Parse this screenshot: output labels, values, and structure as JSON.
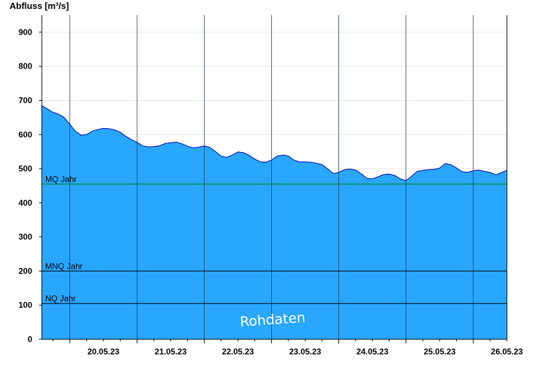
{
  "chart_data": {
    "type": "area",
    "ylabel": "Abfluss [m³/s]",
    "ylim": [
      0,
      950
    ],
    "yticks": [
      0,
      100,
      200,
      300,
      400,
      500,
      600,
      700,
      800,
      900
    ],
    "xlim": [
      "2023-05-19T14:00",
      "2023-05-26T12:00"
    ],
    "day_boundaries": [
      "2023-05-20T00:00",
      "2023-05-21T00:00",
      "2023-05-22T00:00",
      "2023-05-23T00:00",
      "2023-05-24T00:00",
      "2023-05-25T00:00",
      "2023-05-26T00:00"
    ],
    "xtick_labels": [
      {
        "date": "2023-05-20T12:00",
        "label": "20.05.23"
      },
      {
        "date": "2023-05-21T12:00",
        "label": "21.05.23"
      },
      {
        "date": "2023-05-22T12:00",
        "label": "22.05.23"
      },
      {
        "date": "2023-05-23T12:00",
        "label": "23.05.23"
      },
      {
        "date": "2023-05-24T12:00",
        "label": "24.05.23"
      },
      {
        "date": "2023-05-25T12:00",
        "label": "25.05.23"
      },
      {
        "date": "2023-05-26T12:00",
        "label": "26.05.23"
      }
    ],
    "series": [
      {
        "color": "#29a7ff",
        "edge_color": "#0000aa",
        "points": [
          [
            "2023-05-19T14:00",
            685
          ],
          [
            "2023-05-19T16:00",
            675
          ],
          [
            "2023-05-19T18:00",
            665
          ],
          [
            "2023-05-19T20:00",
            660
          ],
          [
            "2023-05-19T22:00",
            650
          ],
          [
            "2023-05-20T00:00",
            630
          ],
          [
            "2023-05-20T02:00",
            610
          ],
          [
            "2023-05-20T04:00",
            598
          ],
          [
            "2023-05-20T06:00",
            600
          ],
          [
            "2023-05-20T08:00",
            610
          ],
          [
            "2023-05-20T10:00",
            615
          ],
          [
            "2023-05-20T12:00",
            618
          ],
          [
            "2023-05-20T14:00",
            617
          ],
          [
            "2023-05-20T16:00",
            614
          ],
          [
            "2023-05-20T18:00",
            607
          ],
          [
            "2023-05-20T20:00",
            595
          ],
          [
            "2023-05-20T22:00",
            585
          ],
          [
            "2023-05-21T00:00",
            577
          ],
          [
            "2023-05-21T02:00",
            567
          ],
          [
            "2023-05-21T04:00",
            564
          ],
          [
            "2023-05-21T06:00",
            565
          ],
          [
            "2023-05-21T08:00",
            567
          ],
          [
            "2023-05-21T10:00",
            574
          ],
          [
            "2023-05-21T12:00",
            576
          ],
          [
            "2023-05-21T14:00",
            578
          ],
          [
            "2023-05-21T16:00",
            573
          ],
          [
            "2023-05-21T18:00",
            566
          ],
          [
            "2023-05-21T20:00",
            561
          ],
          [
            "2023-05-21T22:00",
            563
          ],
          [
            "2023-05-22T00:00",
            567
          ],
          [
            "2023-05-22T02:00",
            562
          ],
          [
            "2023-05-22T04:00",
            550
          ],
          [
            "2023-05-22T06:00",
            537
          ],
          [
            "2023-05-22T08:00",
            533
          ],
          [
            "2023-05-22T10:00",
            540
          ],
          [
            "2023-05-22T12:00",
            549
          ],
          [
            "2023-05-22T14:00",
            547
          ],
          [
            "2023-05-22T16:00",
            539
          ],
          [
            "2023-05-22T18:00",
            528
          ],
          [
            "2023-05-22T20:00",
            520
          ],
          [
            "2023-05-22T22:00",
            519
          ],
          [
            "2023-05-23T00:00",
            525
          ],
          [
            "2023-05-23T02:00",
            537
          ],
          [
            "2023-05-23T04:00",
            540
          ],
          [
            "2023-05-23T06:00",
            537
          ],
          [
            "2023-05-23T08:00",
            525
          ],
          [
            "2023-05-23T10:00",
            520
          ],
          [
            "2023-05-23T12:00",
            520
          ],
          [
            "2023-05-23T14:00",
            519
          ],
          [
            "2023-05-23T16:00",
            516
          ],
          [
            "2023-05-23T18:00",
            512
          ],
          [
            "2023-05-23T20:00",
            500
          ],
          [
            "2023-05-23T22:00",
            486
          ],
          [
            "2023-05-24T00:00",
            489
          ],
          [
            "2023-05-24T02:00",
            497
          ],
          [
            "2023-05-24T04:00",
            499
          ],
          [
            "2023-05-24T06:00",
            496
          ],
          [
            "2023-05-24T08:00",
            485
          ],
          [
            "2023-05-24T10:00",
            472
          ],
          [
            "2023-05-24T12:00",
            470
          ],
          [
            "2023-05-24T14:00",
            476
          ],
          [
            "2023-05-24T16:00",
            483
          ],
          [
            "2023-05-24T18:00",
            484
          ],
          [
            "2023-05-24T20:00",
            480
          ],
          [
            "2023-05-24T22:00",
            470
          ],
          [
            "2023-05-25T00:00",
            465
          ],
          [
            "2023-05-25T02:00",
            478
          ],
          [
            "2023-05-25T04:00",
            492
          ],
          [
            "2023-05-25T06:00",
            495
          ],
          [
            "2023-05-25T08:00",
            497
          ],
          [
            "2023-05-25T10:00",
            498
          ],
          [
            "2023-05-25T12:00",
            502
          ],
          [
            "2023-05-25T14:00",
            515
          ],
          [
            "2023-05-25T16:00",
            512
          ],
          [
            "2023-05-25T18:00",
            502
          ],
          [
            "2023-05-25T20:00",
            491
          ],
          [
            "2023-05-25T22:00",
            489
          ],
          [
            "2023-05-26T00:00",
            494
          ],
          [
            "2023-05-26T02:00",
            496
          ],
          [
            "2023-05-26T04:00",
            492
          ],
          [
            "2023-05-26T06:00",
            489
          ],
          [
            "2023-05-26T08:00",
            482
          ],
          [
            "2023-05-26T10:00",
            488
          ],
          [
            "2023-05-26T12:00",
            495
          ]
        ]
      }
    ],
    "reference_lines": [
      {
        "label": "MQ Jahr",
        "value": 455,
        "color": "#008000"
      },
      {
        "label": "MNQ Jahr",
        "value": 200,
        "color": "#000000"
      },
      {
        "label": "NQ Jahr",
        "value": 105,
        "color": "#000000"
      }
    ],
    "grid": {
      "horizontal": true,
      "vertical_day_lines": true
    },
    "watermark": "Rohdaten"
  }
}
